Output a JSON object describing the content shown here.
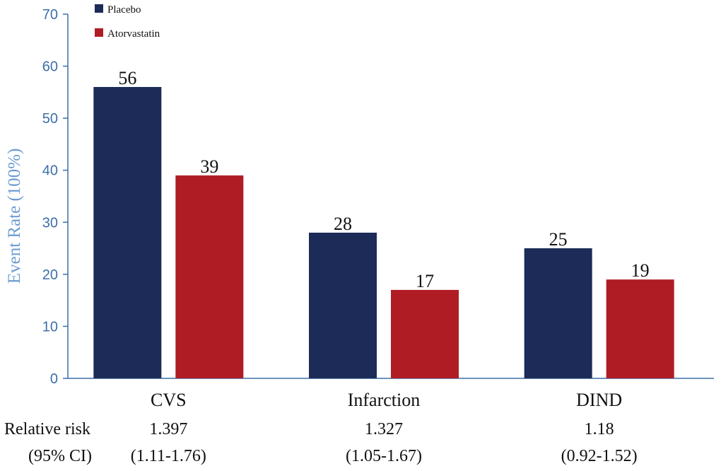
{
  "chart_data": {
    "type": "bar",
    "categories": [
      "CVS",
      "Infarction",
      "DIND"
    ],
    "series": [
      {
        "name": "Placebo",
        "values": [
          56,
          28,
          25
        ],
        "data_labels": [
          "56",
          "28",
          "25"
        ],
        "color": "#1c2b57"
      },
      {
        "name": "Atorvastatin",
        "values": [
          39,
          17,
          19
        ],
        "data_labels": [
          "39",
          "17",
          "19"
        ],
        "color": "#b01c24"
      }
    ],
    "ylabel": "Event Rate (100%)",
    "xlabel": "",
    "ylim": [
      0,
      70
    ],
    "yticks": [
      "0",
      "10",
      "20",
      "30",
      "40",
      "50",
      "60",
      "70"
    ],
    "legend": "top-left",
    "grid": false,
    "relative_risk": {
      "row_label": "Relative risk",
      "ci_label": "(95% CI)",
      "values": [
        "1.397",
        "1.327",
        "1.18"
      ],
      "ci": [
        "(1.11-1.76)",
        "(1.05-1.67)",
        "(0.92-1.52)"
      ]
    }
  }
}
